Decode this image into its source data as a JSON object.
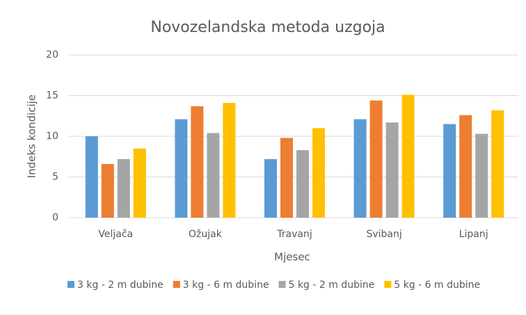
{
  "chart_data": {
    "type": "bar",
    "title": "Novozelandska metoda uzgoja",
    "x_label": "Mjesec",
    "y_label": "Indeks kondicije",
    "categories": [
      "Veljača",
      "Ožujak",
      "Travanj",
      "Svibanj",
      "Lipanj"
    ],
    "series": [
      {
        "name": "3 kg - 2 m dubine",
        "color": "#5b9bd5",
        "values": [
          10.0,
          12.1,
          7.2,
          12.1,
          11.5
        ]
      },
      {
        "name": "3 kg - 6 m dubine",
        "color": "#ed7d31",
        "values": [
          6.6,
          13.7,
          9.8,
          14.4,
          12.6
        ]
      },
      {
        "name": "5 kg - 2 m dubine",
        "color": "#a5a5a5",
        "values": [
          7.2,
          10.4,
          8.3,
          11.7,
          10.3
        ]
      },
      {
        "name": "5 kg - 6 m dubine",
        "color": "#ffc000",
        "values": [
          8.5,
          14.1,
          11.0,
          15.1,
          13.2
        ]
      }
    ],
    "ylim": [
      0,
      20
    ],
    "yticks": [
      0,
      5,
      10,
      15,
      20
    ],
    "grid": true,
    "legend": "bottom"
  }
}
